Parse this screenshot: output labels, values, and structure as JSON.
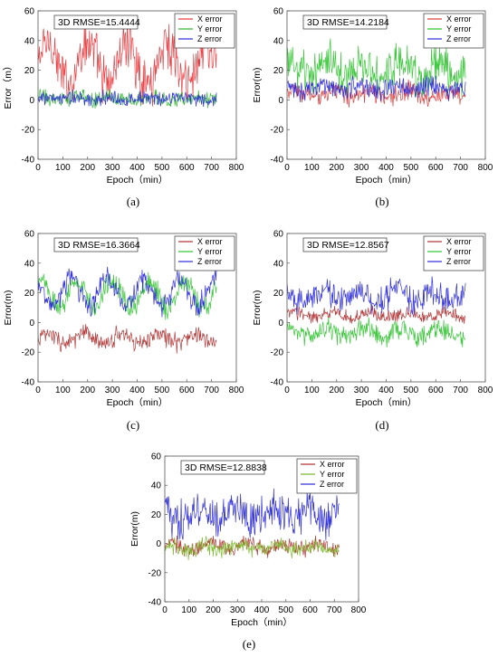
{
  "chart_data": [
    {
      "type": "line",
      "panel_label": "(a)",
      "annotation": "3D RMSE=15.4444",
      "xlabel": "Epoch（min）",
      "ylabel": "Error（m）",
      "xlim": [
        0,
        800
      ],
      "ylim": [
        -40,
        60
      ],
      "xticks": [
        0,
        100,
        200,
        300,
        400,
        500,
        600,
        700,
        800
      ],
      "yticks": [
        -40,
        -20,
        0,
        20,
        40,
        60
      ],
      "legend_position": "top-right",
      "grid": false,
      "x_range": [
        0,
        720
      ],
      "series": [
        {
          "name": "X error",
          "color": "#e8363a",
          "mean": 25,
          "amplitude": 14,
          "period": 160,
          "noise": 22
        },
        {
          "name": "Y error",
          "color": "#2fb52f",
          "mean": 1,
          "amplitude": 1,
          "period": 150,
          "noise": 7
        },
        {
          "name": "Z error",
          "color": "#2a2ad8",
          "mean": 1,
          "amplitude": 1,
          "period": 150,
          "noise": 6
        }
      ]
    },
    {
      "type": "line",
      "panel_label": "(b)",
      "annotation": "3D RMSE=14.2184",
      "xlabel": "Epoch（min）",
      "ylabel": "Error(m)",
      "xlim": [
        0,
        800
      ],
      "ylim": [
        -40,
        60
      ],
      "xticks": [
        0,
        100,
        200,
        300,
        400,
        500,
        600,
        700,
        800
      ],
      "yticks": [
        -40,
        -20,
        0,
        20,
        40,
        60
      ],
      "legend_position": "top-right",
      "grid": false,
      "x_range": [
        0,
        720
      ],
      "series": [
        {
          "name": "X error",
          "color": "#d93a3a",
          "mean": 4,
          "amplitude": 2,
          "period": 150,
          "noise": 8
        },
        {
          "name": "Y error",
          "color": "#2fc42f",
          "mean": 20,
          "amplitude": 5,
          "period": 150,
          "noise": 18
        },
        {
          "name": "Z error",
          "color": "#2a2ad8",
          "mean": 8,
          "amplitude": 2,
          "period": 150,
          "noise": 9
        }
      ]
    },
    {
      "type": "line",
      "panel_label": "(c)",
      "annotation": "3D RMSE=16.3664",
      "xlabel": "Epoch（min）",
      "ylabel": "Error(m)",
      "xlim": [
        0,
        800
      ],
      "ylim": [
        -40,
        60
      ],
      "xticks": [
        0,
        100,
        200,
        300,
        400,
        500,
        600,
        700,
        800
      ],
      "yticks": [
        -40,
        -20,
        0,
        20,
        40,
        60
      ],
      "legend_position": "top-right",
      "grid": false,
      "x_range": [
        0,
        720
      ],
      "series": [
        {
          "name": "X error",
          "color": "#b03030",
          "mean": -11,
          "amplitude": 3,
          "period": 150,
          "noise": 8
        },
        {
          "name": "Y error",
          "color": "#2fc42f",
          "mean": 19,
          "amplitude": 9,
          "period": 145,
          "noise": 10
        },
        {
          "name": "Z error",
          "color": "#2a2ad8",
          "mean": 20,
          "amplitude": 9,
          "period": 145,
          "noise": 10
        }
      ]
    },
    {
      "type": "line",
      "panel_label": "(d)",
      "annotation": "3D RMSE=12.8567",
      "xlabel": "Epoch（min）",
      "ylabel": "Error(m)",
      "xlim": [
        0,
        800
      ],
      "ylim": [
        -40,
        60
      ],
      "xticks": [
        0,
        100,
        200,
        300,
        400,
        500,
        600,
        700,
        800
      ],
      "yticks": [
        -40,
        -20,
        0,
        20,
        40,
        60
      ],
      "legend_position": "top-right",
      "grid": false,
      "x_range": [
        0,
        720
      ],
      "series": [
        {
          "name": "X error",
          "color": "#b03030",
          "mean": 5,
          "amplitude": 2,
          "period": 150,
          "noise": 6
        },
        {
          "name": "Y error",
          "color": "#2fc42f",
          "mean": -7,
          "amplitude": 3,
          "period": 150,
          "noise": 9
        },
        {
          "name": "Z error",
          "color": "#2a2ad8",
          "mean": 18,
          "amplitude": 4,
          "period": 150,
          "noise": 12
        }
      ]
    },
    {
      "type": "line",
      "panel_label": "(e)",
      "annotation": "3D RMSE=12.8838",
      "xlabel": "Epoch（min）",
      "ylabel": "Error(m)",
      "xlim": [
        0,
        800
      ],
      "ylim": [
        -40,
        60
      ],
      "xticks": [
        0,
        100,
        200,
        300,
        400,
        500,
        600,
        700,
        800
      ],
      "yticks": [
        -40,
        -20,
        0,
        20,
        40,
        60
      ],
      "legend_position": "top-right",
      "grid": false,
      "x_range": [
        0,
        720
      ],
      "series": [
        {
          "name": "X error",
          "color": "#b03030",
          "mean": -2,
          "amplitude": 2,
          "period": 150,
          "noise": 7
        },
        {
          "name": "Y error",
          "color": "#7ab82a",
          "mean": -3,
          "amplitude": 2,
          "period": 150,
          "noise": 7
        },
        {
          "name": "Z error",
          "color": "#2a2ad8",
          "mean": 20,
          "amplitude": 4,
          "period": 150,
          "noise": 16
        }
      ]
    }
  ]
}
